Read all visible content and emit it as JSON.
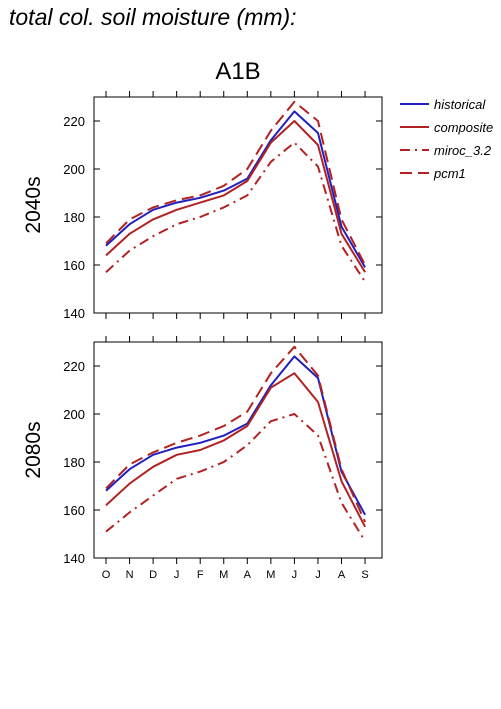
{
  "page_title": "total col. soil moisture (mm):",
  "scenario": "A1B",
  "colors": {
    "historical": "#2020c0",
    "projection": "#b22222",
    "axes": "#000000"
  },
  "legend": [
    {
      "label": "historical",
      "style": "solid",
      "color": "#2020c0"
    },
    {
      "label": "composite",
      "style": "solid",
      "color": "#b22222"
    },
    {
      "label": "miroc_3.2",
      "style": "dashdot",
      "color": "#b22222"
    },
    {
      "label": "pcm1",
      "style": "dashed",
      "color": "#b22222"
    }
  ],
  "chart_data": [
    {
      "type": "line",
      "title": "2040s",
      "ylim": [
        140,
        230
      ],
      "yticks": [
        140,
        160,
        180,
        200,
        220
      ],
      "categories": [
        "O",
        "N",
        "D",
        "J",
        "F",
        "M",
        "A",
        "M",
        "J",
        "J",
        "A",
        "S"
      ],
      "series": [
        {
          "name": "historical",
          "style": "solid",
          "color": "#2020c0",
          "values": [
            168,
            177,
            183,
            186,
            188,
            191,
            196,
            212,
            224,
            215,
            176,
            159
          ]
        },
        {
          "name": "composite",
          "style": "solid",
          "color": "#b22222",
          "values": [
            164,
            173,
            179,
            183,
            186,
            189,
            195,
            211,
            220,
            210,
            173,
            157
          ]
        },
        {
          "name": "miroc_3.2",
          "style": "dashdot",
          "color": "#b22222",
          "values": [
            157,
            166,
            172,
            177,
            180,
            184,
            189,
            203,
            211,
            201,
            168,
            153
          ]
        },
        {
          "name": "pcm1",
          "style": "dashed",
          "color": "#b22222",
          "values": [
            169,
            179,
            184,
            187,
            189,
            193,
            200,
            216,
            228,
            220,
            179,
            160
          ]
        }
      ]
    },
    {
      "type": "line",
      "title": "2080s",
      "ylim": [
        140,
        230
      ],
      "yticks": [
        140,
        160,
        180,
        200,
        220
      ],
      "categories": [
        "O",
        "N",
        "D",
        "J",
        "F",
        "M",
        "A",
        "M",
        "J",
        "J",
        "A",
        "S"
      ],
      "series": [
        {
          "name": "historical",
          "style": "solid",
          "color": "#2020c0",
          "values": [
            168,
            177,
            183,
            186,
            188,
            191,
            196,
            212,
            224,
            215,
            176,
            158
          ]
        },
        {
          "name": "composite",
          "style": "solid",
          "color": "#b22222",
          "values": [
            162,
            171,
            178,
            183,
            185,
            189,
            195,
            211,
            217,
            205,
            172,
            153
          ]
        },
        {
          "name": "miroc_3.2",
          "style": "dashdot",
          "color": "#b22222",
          "values": [
            151,
            159,
            166,
            173,
            176,
            180,
            187,
            197,
            200,
            191,
            163,
            147
          ]
        },
        {
          "name": "pcm1",
          "style": "dashed",
          "color": "#b22222",
          "values": [
            169,
            179,
            184,
            188,
            191,
            195,
            201,
            217,
            228,
            216,
            177,
            155
          ]
        }
      ]
    }
  ]
}
